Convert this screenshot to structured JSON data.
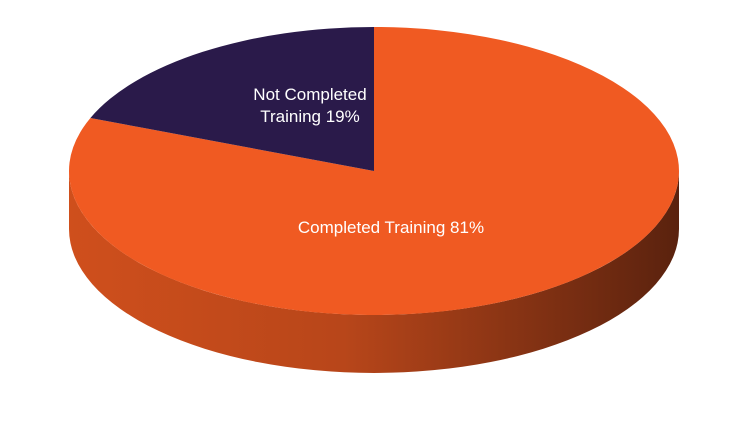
{
  "chart_data": {
    "type": "pie",
    "style": "3d",
    "title": "",
    "slices": [
      {
        "label_lines": [
          "Completed Training 81%"
        ],
        "value": 81,
        "color": "#f05a22"
      },
      {
        "label_lines": [
          "Not Completed",
          "Training 19%"
        ],
        "value": 19,
        "color": "#2a1a4a"
      }
    ],
    "side_colors": {
      "light": "#cf4f1c",
      "dark": "#5a220e"
    }
  }
}
